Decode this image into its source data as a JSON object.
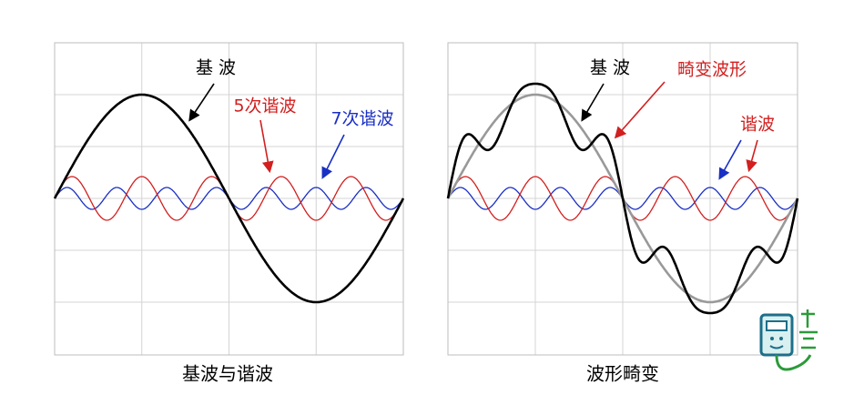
{
  "panels": [
    {
      "caption": "基波与谐波",
      "labels": [
        {
          "text": "基 波"
        },
        {
          "text": "5次谐波"
        },
        {
          "text": "7次谐波"
        }
      ]
    },
    {
      "caption": "波形畸变",
      "labels": [
        {
          "text": "基 波"
        },
        {
          "text": "畸变波形"
        },
        {
          "text": "谐波"
        }
      ]
    }
  ]
}
